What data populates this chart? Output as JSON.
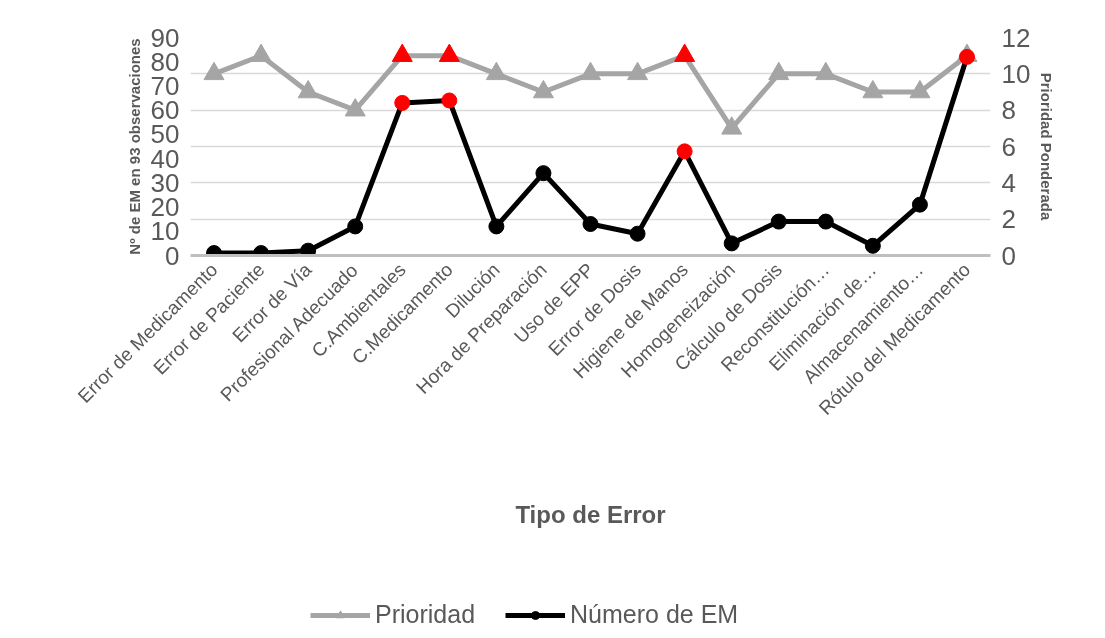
{
  "chart_data": {
    "type": "line",
    "xlabel": "Tipo de Error",
    "ylabel": "Nº de EM en 93 observaciones",
    "y2label": "Prioridad Ponderada",
    "categories": [
      "Error de Medicamento",
      "Error de Paciente",
      "Error de Vía",
      "Profesional Adecuado",
      "C.Ambientales",
      "C.Medicamento",
      "Dilución",
      "Hora de Preparación",
      "Uso de EPP",
      "Error de Dosis",
      "Higiene de Manos",
      "Homogeneización",
      "Cálculo de Dosis",
      "Reconstitución…",
      "Eliminación de…",
      "Almacenamiento…",
      "Rótulo del Medicamento"
    ],
    "series": [
      {
        "name": "Prioridad",
        "color": "#a5a5a5",
        "axis": "y2",
        "marker": "triangle",
        "values": [
          10,
          11,
          9,
          8,
          11,
          11,
          10,
          9,
          10,
          10,
          11,
          7,
          10,
          10,
          9,
          9,
          11
        ],
        "colors": [
          "#a5a5a5",
          "#a5a5a5",
          "#a5a5a5",
          "#a5a5a5",
          "#ff0000",
          "#ff0000",
          "#a5a5a5",
          "#a5a5a5",
          "#a5a5a5",
          "#a5a5a5",
          "#ff0000",
          "#a5a5a5",
          "#a5a5a5",
          "#a5a5a5",
          "#a5a5a5",
          "#a5a5a5",
          "#a5a5a5"
        ]
      },
      {
        "name": "Número de EM",
        "color": "#000000",
        "marker": "circle",
        "values": [
          1,
          1,
          2,
          12,
          63,
          64,
          12,
          34,
          13,
          9,
          43,
          5,
          14,
          14,
          4,
          21,
          82
        ],
        "colors": [
          "#000000",
          "#000000",
          "#000000",
          "#000000",
          "#ff0000",
          "#ff0000",
          "#000000",
          "#000000",
          "#000000",
          "#000000",
          "#ff0000",
          "#000000",
          "#000000",
          "#000000",
          "#000000",
          "#000000",
          "#ff0000"
        ]
      }
    ],
    "ylim": [
      0,
      90
    ],
    "yticks": [
      0,
      10,
      20,
      30,
      40,
      50,
      60,
      70,
      80,
      90
    ],
    "y2lim": [
      0,
      12
    ],
    "y2ticks": [
      0,
      2,
      4,
      6,
      8,
      10,
      12
    ],
    "grid": "y",
    "legend": "bottom",
    "line_style": "solid"
  }
}
